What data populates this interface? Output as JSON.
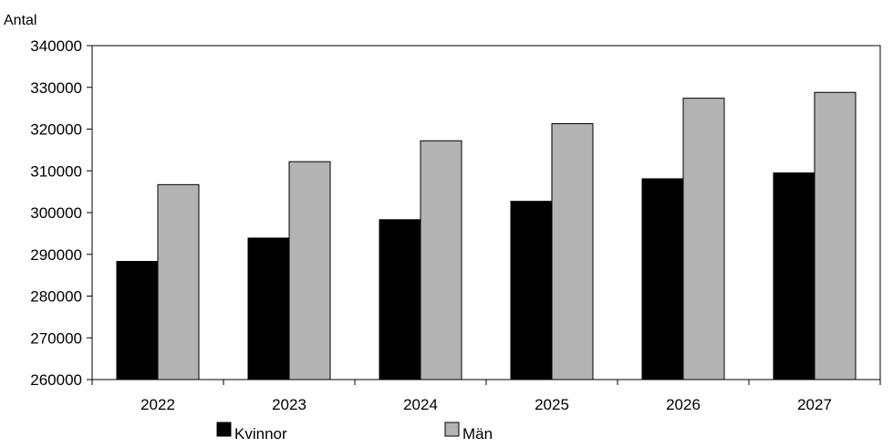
{
  "chart_data": {
    "type": "bar",
    "ylabel": "Antal",
    "categories": [
      "2022",
      "2023",
      "2024",
      "2025",
      "2026",
      "2027"
    ],
    "series": [
      {
        "name": "Kvinnor",
        "color": "#000000",
        "values": [
          288300,
          293900,
          298300,
          302700,
          308100,
          309500
        ]
      },
      {
        "name": "Män",
        "color": "#b3b3b3",
        "values": [
          306700,
          312200,
          317200,
          321300,
          327400,
          328800
        ]
      }
    ],
    "ylim": [
      260000,
      340000
    ],
    "yticks": [
      "260000",
      "270000",
      "280000",
      "290000",
      "300000",
      "310000",
      "320000",
      "330000",
      "340000"
    ],
    "grid": false,
    "legend_position": "bottom"
  }
}
